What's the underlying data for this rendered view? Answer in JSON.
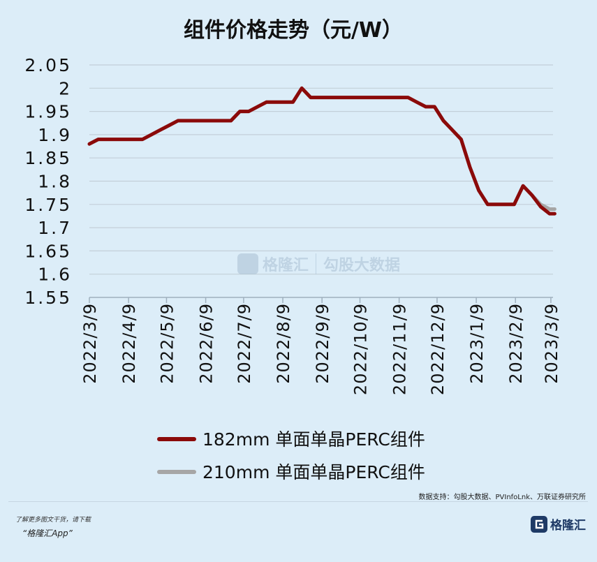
{
  "title": "组件价格走势（元/W）",
  "chart_data": {
    "type": "line",
    "title": "组件价格走势（元/W）",
    "xlabel": "",
    "ylabel": "",
    "x_ticks": [
      "2022/3/9",
      "2022/4/9",
      "2022/5/9",
      "2022/6/9",
      "2022/7/9",
      "2022/8/9",
      "2022/9/9",
      "2022/10/9",
      "2022/11/9",
      "2022/12/9",
      "2023/1/9",
      "2023/2/9",
      "2023/3/9"
    ],
    "y_ticks": [
      "1.55",
      "1.6",
      "1.65",
      "1.7",
      "1.75",
      "1.8",
      "1.85",
      "1.9",
      "1.95",
      "2",
      "2.05"
    ],
    "ylim": [
      1.55,
      2.05
    ],
    "grid": "horizontal",
    "legend_position": "bottom",
    "series": [
      {
        "name": "182mm 单面单晶PERC组件",
        "color": "#8b0a0a",
        "points": [
          [
            "2022/3/9",
            1.88
          ],
          [
            "2022/3/16",
            1.89
          ],
          [
            "2022/3/23",
            1.89
          ],
          [
            "2022/3/30",
            1.89
          ],
          [
            "2022/4/6",
            1.89
          ],
          [
            "2022/4/13",
            1.89
          ],
          [
            "2022/4/20",
            1.89
          ],
          [
            "2022/4/27",
            1.9
          ],
          [
            "2022/5/4",
            1.91
          ],
          [
            "2022/5/11",
            1.92
          ],
          [
            "2022/5/18",
            1.93
          ],
          [
            "2022/5/25",
            1.93
          ],
          [
            "2022/6/1",
            1.93
          ],
          [
            "2022/6/8",
            1.93
          ],
          [
            "2022/6/15",
            1.93
          ],
          [
            "2022/6/22",
            1.93
          ],
          [
            "2022/6/29",
            1.93
          ],
          [
            "2022/7/6",
            1.95
          ],
          [
            "2022/7/13",
            1.95
          ],
          [
            "2022/7/20",
            1.96
          ],
          [
            "2022/7/27",
            1.97
          ],
          [
            "2022/8/3",
            1.97
          ],
          [
            "2022/8/10",
            1.97
          ],
          [
            "2022/8/17",
            1.97
          ],
          [
            "2022/8/24",
            2.0
          ],
          [
            "2022/8/31",
            1.98
          ],
          [
            "2022/9/7",
            1.98
          ],
          [
            "2022/9/14",
            1.98
          ],
          [
            "2022/9/21",
            1.98
          ],
          [
            "2022/9/28",
            1.98
          ],
          [
            "2022/10/5",
            1.98
          ],
          [
            "2022/10/12",
            1.98
          ],
          [
            "2022/10/19",
            1.98
          ],
          [
            "2022/10/26",
            1.98
          ],
          [
            "2022/11/2",
            1.98
          ],
          [
            "2022/11/9",
            1.98
          ],
          [
            "2022/11/16",
            1.98
          ],
          [
            "2022/11/23",
            1.97
          ],
          [
            "2022/11/30",
            1.96
          ],
          [
            "2022/12/7",
            1.96
          ],
          [
            "2022/12/14",
            1.93
          ],
          [
            "2022/12/21",
            1.91
          ],
          [
            "2022/12/28",
            1.89
          ],
          [
            "2023/1/4",
            1.83
          ],
          [
            "2023/1/11",
            1.78
          ],
          [
            "2023/1/18",
            1.75
          ],
          [
            "2023/1/25",
            1.75
          ],
          [
            "2023/2/1",
            1.75
          ],
          [
            "2023/2/8",
            1.75
          ],
          [
            "2023/2/15",
            1.79
          ],
          [
            "2023/2/22",
            1.77
          ],
          [
            "2023/3/1",
            1.745
          ],
          [
            "2023/3/8",
            1.73
          ],
          [
            "2023/3/12",
            1.73
          ]
        ]
      },
      {
        "name": "210mm 单面单晶PERC组件",
        "color": "#a6a6a6",
        "points": [
          [
            "2022/3/9",
            1.88
          ],
          [
            "2022/3/16",
            1.89
          ],
          [
            "2022/3/23",
            1.89
          ],
          [
            "2022/3/30",
            1.89
          ],
          [
            "2022/4/6",
            1.89
          ],
          [
            "2022/4/13",
            1.89
          ],
          [
            "2022/4/20",
            1.89
          ],
          [
            "2022/4/27",
            1.9
          ],
          [
            "2022/5/4",
            1.91
          ],
          [
            "2022/5/11",
            1.92
          ],
          [
            "2022/5/18",
            1.93
          ],
          [
            "2022/5/25",
            1.93
          ],
          [
            "2022/6/1",
            1.93
          ],
          [
            "2022/6/8",
            1.93
          ],
          [
            "2022/6/15",
            1.93
          ],
          [
            "2022/6/22",
            1.93
          ],
          [
            "2022/6/29",
            1.93
          ],
          [
            "2022/7/6",
            1.95
          ],
          [
            "2022/7/13",
            1.95
          ],
          [
            "2022/7/20",
            1.96
          ],
          [
            "2022/7/27",
            1.97
          ],
          [
            "2022/8/3",
            1.97
          ],
          [
            "2022/8/10",
            1.97
          ],
          [
            "2022/8/17",
            1.97
          ],
          [
            "2022/8/24",
            2.0
          ],
          [
            "2022/8/31",
            1.98
          ],
          [
            "2022/9/7",
            1.98
          ],
          [
            "2022/9/14",
            1.98
          ],
          [
            "2022/9/21",
            1.98
          ],
          [
            "2022/9/28",
            1.98
          ],
          [
            "2022/10/5",
            1.98
          ],
          [
            "2022/10/12",
            1.98
          ],
          [
            "2022/10/19",
            1.98
          ],
          [
            "2022/10/26",
            1.98
          ],
          [
            "2022/11/2",
            1.98
          ],
          [
            "2022/11/9",
            1.98
          ],
          [
            "2022/11/16",
            1.98
          ],
          [
            "2022/11/23",
            1.97
          ],
          [
            "2022/11/30",
            1.96
          ],
          [
            "2022/12/7",
            1.96
          ],
          [
            "2022/12/14",
            1.93
          ],
          [
            "2022/12/21",
            1.91
          ],
          [
            "2022/12/28",
            1.89
          ],
          [
            "2023/1/4",
            1.83
          ],
          [
            "2023/1/11",
            1.78
          ],
          [
            "2023/1/18",
            1.75
          ],
          [
            "2023/1/25",
            1.75
          ],
          [
            "2023/2/1",
            1.75
          ],
          [
            "2023/2/8",
            1.75
          ],
          [
            "2023/2/15",
            1.79
          ],
          [
            "2023/2/22",
            1.77
          ],
          [
            "2023/3/1",
            1.75
          ],
          [
            "2023/3/8",
            1.74
          ],
          [
            "2023/3/12",
            1.74
          ]
        ]
      }
    ]
  },
  "watermark": {
    "brand": "格隆汇",
    "partner": "勾股大数据"
  },
  "source": "数据支持：勾股大数据、PVInfoLnk、万联证券研究所",
  "promo": "了解更多图文干货，请下载",
  "app": "“格隆汇App”",
  "brand": "格隆汇"
}
